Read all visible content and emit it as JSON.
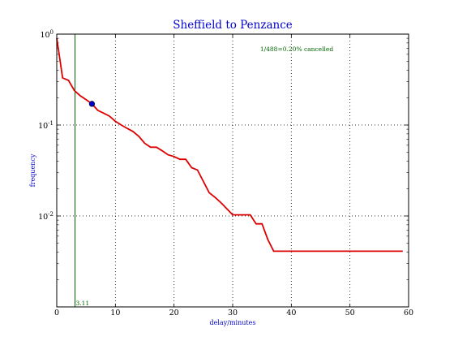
{
  "chart_data": {
    "type": "line",
    "title": "Sheffield to Penzance",
    "xlabel": "delay/minutes",
    "ylabel": "frequency",
    "xlim": [
      0,
      60
    ],
    "ylim": [
      0.001,
      1
    ],
    "y_scale": "log",
    "grid": true,
    "x_ticks": [
      0,
      10,
      20,
      30,
      40,
      50,
      60
    ],
    "x_tick_labels": [
      "0",
      "10",
      "20",
      "30",
      "40",
      "50",
      "60"
    ],
    "y_ticks": [
      1,
      0.1,
      0.01
    ],
    "y_tick_labels": [
      {
        "base": "10",
        "exp": "0"
      },
      {
        "base": "10",
        "exp": "-1"
      },
      {
        "base": "10",
        "exp": "-2"
      }
    ],
    "annotation": "1/488=0.20% cancelled",
    "marker_line": {
      "x": 3.11,
      "label": "3.11",
      "color": "#006600"
    },
    "highlight_point": {
      "x": 6,
      "y": 0.171,
      "color": "#0000cc"
    },
    "series": [
      {
        "color": "#dd0000",
        "x": [
          0,
          0.5,
          1,
          2,
          3,
          4,
          5,
          6,
          7,
          8,
          9,
          10,
          11,
          12,
          13,
          14,
          15,
          16,
          17,
          18,
          19,
          20,
          21,
          22,
          23,
          24,
          25,
          26,
          27,
          28,
          29,
          30,
          31,
          32,
          33,
          34,
          35,
          36,
          37,
          38,
          40,
          45,
          50,
          55,
          59
        ],
        "y": [
          0.9,
          0.55,
          0.33,
          0.31,
          0.24,
          0.21,
          0.19,
          0.171,
          0.145,
          0.135,
          0.125,
          0.11,
          0.1,
          0.092,
          0.085,
          0.075,
          0.063,
          0.057,
          0.057,
          0.052,
          0.047,
          0.045,
          0.042,
          0.042,
          0.034,
          0.032,
          0.024,
          0.018,
          0.016,
          0.014,
          0.012,
          0.0103,
          0.0103,
          0.0103,
          0.0103,
          0.0082,
          0.0082,
          0.0055,
          0.0041,
          0.0041,
          0.0041,
          0.0041,
          0.0041,
          0.0041,
          0.0041
        ]
      }
    ]
  }
}
